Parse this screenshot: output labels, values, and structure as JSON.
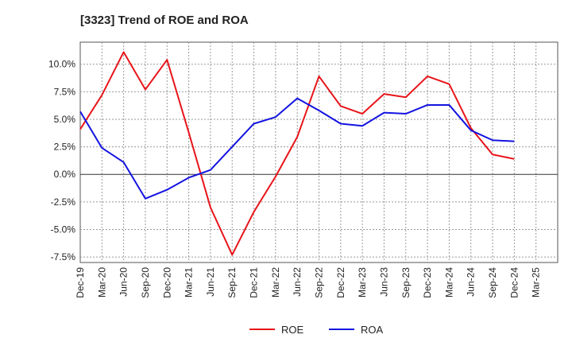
{
  "chart_data": {
    "type": "line",
    "title": "[3323]  Trend of ROE and ROA",
    "xlabel": "",
    "ylabel": "",
    "x": [
      "Dec-19",
      "Mar-20",
      "Jun-20",
      "Sep-20",
      "Dec-20",
      "Mar-21",
      "Jun-21",
      "Sep-21",
      "Dec-21",
      "Mar-22",
      "Jun-22",
      "Sep-22",
      "Dec-22",
      "Mar-23",
      "Jun-23",
      "Sep-23",
      "Dec-23",
      "Mar-24",
      "Jun-24",
      "Sep-24",
      "Dec-24",
      "Mar-25"
    ],
    "ylim": [
      -8.0,
      12.0
    ],
    "yticks": [
      -7.5,
      -5.0,
      -2.5,
      0.0,
      2.5,
      5.0,
      7.5,
      10.0
    ],
    "ytick_labels": [
      "-7.5%",
      "-5.0%",
      "-2.5%",
      "0.0%",
      "2.5%",
      "5.0%",
      "7.5%",
      "10.0%"
    ],
    "grid": true,
    "legend_position": "bottom-center",
    "series": [
      {
        "name": "ROE",
        "color": "#e8141a",
        "values": [
          4.1,
          7.2,
          11.1,
          7.7,
          10.4,
          3.8,
          -3.0,
          -7.3,
          -3.4,
          -0.2,
          3.4,
          8.9,
          6.2,
          5.5,
          7.3,
          7.0,
          8.9,
          8.2,
          4.2,
          1.8,
          1.4,
          null
        ]
      },
      {
        "name": "ROA",
        "color": "#1414e0",
        "values": [
          5.7,
          2.4,
          1.1,
          -2.2,
          -1.4,
          -0.3,
          0.4,
          2.5,
          4.6,
          5.2,
          6.9,
          5.8,
          4.6,
          4.4,
          5.6,
          5.5,
          6.3,
          6.3,
          4.0,
          3.1,
          3.0,
          null
        ]
      }
    ]
  }
}
